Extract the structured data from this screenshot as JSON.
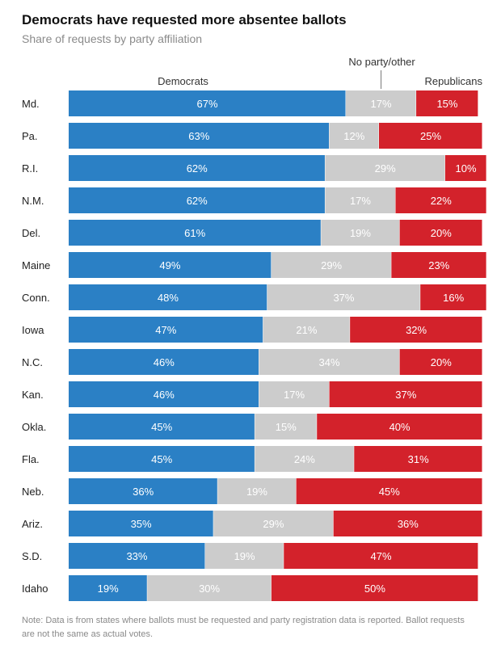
{
  "chart_data": {
    "type": "bar",
    "orientation": "horizontal",
    "stacked": true,
    "percent_stacked": true,
    "title": "Democrats have requested more absentee ballots",
    "subtitle": "Share of requests by party affiliation",
    "note": "Note: Data is from states where ballots must be requested and party registration data is reported. Ballot requests are not the same as actual votes.",
    "xlim": [
      0,
      100
    ],
    "categories": [
      "Md.",
      "Pa.",
      "R.I.",
      "N.M.",
      "Del.",
      "Maine",
      "Conn.",
      "Iowa",
      "N.C.",
      "Kan.",
      "Okla.",
      "Fla.",
      "Neb.",
      "Ariz.",
      "S.D.",
      "Idaho"
    ],
    "series": [
      {
        "name": "Democrats",
        "color": "#2b80c5",
        "label_color": "#ffffff",
        "values": [
          67,
          63,
          62,
          62,
          61,
          49,
          48,
          47,
          46,
          46,
          45,
          45,
          36,
          35,
          33,
          19
        ]
      },
      {
        "name": "No party/other",
        "color": "#cccccc",
        "label_color": "#ffffff",
        "values": [
          17,
          12,
          29,
          17,
          19,
          29,
          37,
          21,
          34,
          17,
          15,
          24,
          19,
          29,
          19,
          30
        ]
      },
      {
        "name": "Republicans",
        "color": "#d3222b",
        "label_color": "#ffffff",
        "values": [
          15,
          25,
          10,
          22,
          20,
          23,
          16,
          32,
          20,
          37,
          40,
          31,
          45,
          36,
          47,
          50
        ]
      }
    ],
    "value_suffix": "%"
  }
}
